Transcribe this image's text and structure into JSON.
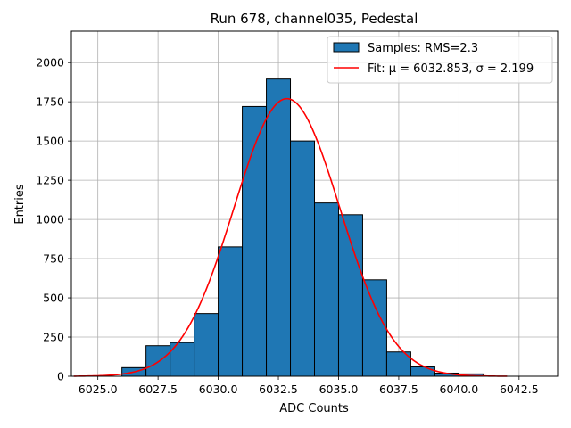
{
  "chart_data": {
    "type": "bar",
    "title": "Run 678, channel035, Pedestal",
    "xlabel": "ADC Counts",
    "ylabel": "Entries",
    "xlim": [
      6023.9,
      6044.1
    ],
    "ylim": [
      0,
      2200
    ],
    "grid": true,
    "legend_position": "top-right",
    "x_ticks": [
      6025.0,
      6027.5,
      6030.0,
      6032.5,
      6035.0,
      6037.5,
      6040.0,
      6042.5
    ],
    "y_ticks": [
      0,
      250,
      500,
      750,
      1000,
      1250,
      1500,
      1750,
      2000
    ],
    "histogram": {
      "name": "Samples: RMS=2.3",
      "color": "#1f77b4",
      "edge_color": "#000000",
      "bin_edges": [
        6025,
        6026,
        6027,
        6028,
        6029,
        6030,
        6031,
        6032,
        6033,
        6034,
        6035,
        6036,
        6037,
        6038,
        6039,
        6040,
        6041
      ],
      "counts": [
        0,
        55,
        195,
        215,
        400,
        825,
        1720,
        1895,
        1500,
        1105,
        1030,
        615,
        155,
        60,
        20,
        15
      ]
    },
    "fit": {
      "name": "Fit: μ = 6032.853, σ = 2.199",
      "color": "#ff0000",
      "mu": 6032.853,
      "sigma": 2.199,
      "amplitude": 1770,
      "x_range": [
        6024,
        6042
      ]
    }
  }
}
